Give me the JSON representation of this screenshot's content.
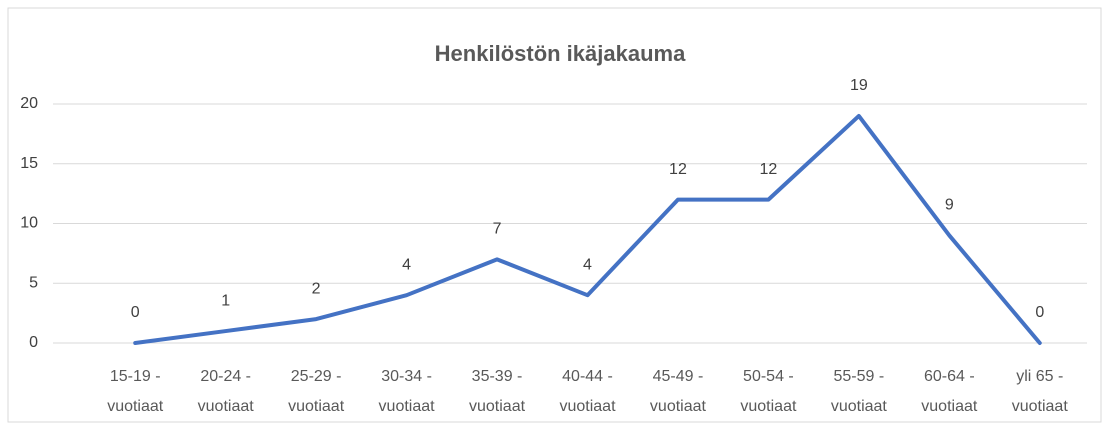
{
  "chart_data": {
    "type": "line",
    "title": "Henkilöstön ikäjakauma",
    "categories": [
      "15-19 - vuotiaat",
      "20-24 - vuotiaat",
      "25-29 - vuotiaat",
      "30-34 - vuotiaat",
      "35-39 - vuotiaat",
      "40-44 - vuotiaat",
      "45-49 - vuotiaat",
      "50-54 - vuotiaat",
      "55-59 - vuotiaat",
      "60-64 - vuotiaat",
      "yli 65 - vuotiaat"
    ],
    "values": [
      0,
      1,
      2,
      4,
      7,
      4,
      12,
      12,
      19,
      9,
      0
    ],
    "color": "#4472c4",
    "ylim": [
      0,
      20
    ],
    "yticks": [
      0,
      5,
      10,
      15,
      20
    ],
    "grid": true
  }
}
